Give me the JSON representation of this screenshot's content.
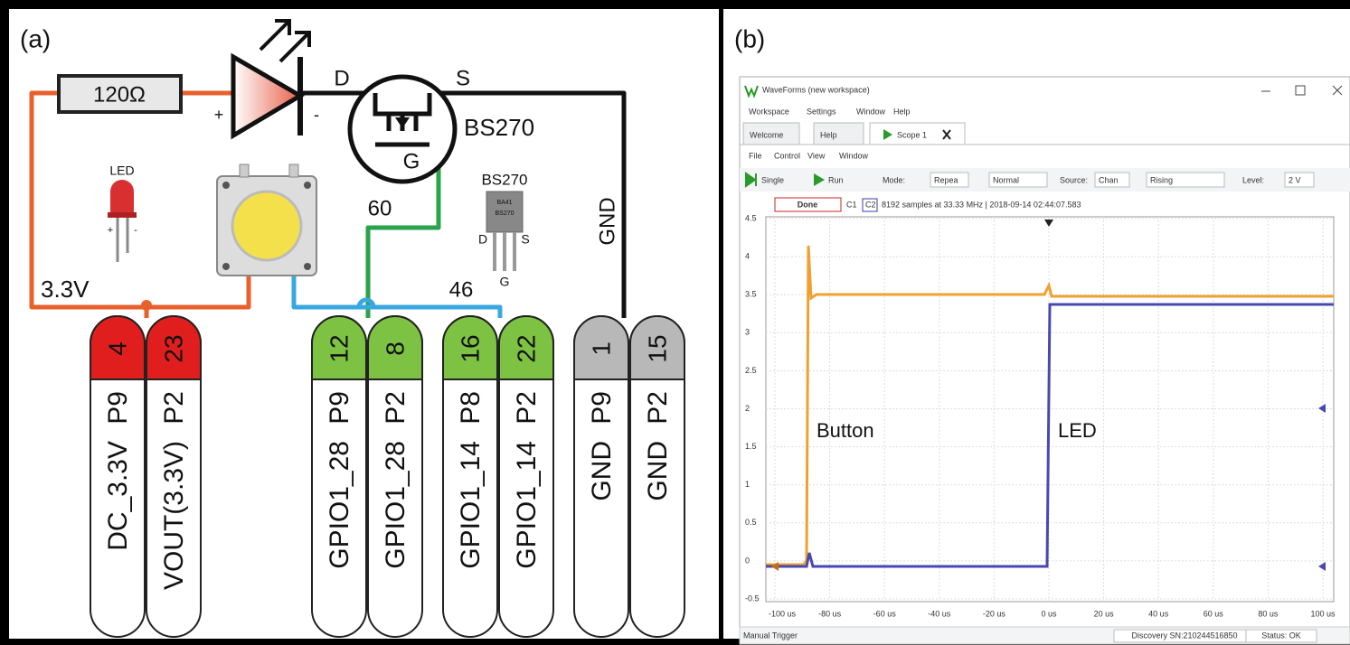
{
  "panel_a": {
    "label": "(a)",
    "resistor": "120Ω",
    "led_polarity": [
      "+",
      "-"
    ],
    "mosfet": {
      "drain": "D",
      "source": "S",
      "gate": "G",
      "name": "BS270"
    },
    "led_icon": {
      "label": "LED",
      "polarity": [
        "+",
        "-"
      ]
    },
    "package": {
      "name": "BS270",
      "marking": [
        "BA41",
        "BS270"
      ],
      "pins": [
        "D",
        "S",
        "G"
      ]
    },
    "wire_labels": {
      "supply": "3.3V",
      "gate_pin": "60",
      "button_pin": "46",
      "ground": "GND"
    },
    "pins": [
      {
        "number": "4",
        "header": "P9",
        "name": "DC_3.3V"
      },
      {
        "number": "23",
        "header": "P2",
        "name": "VOUT(3.3V)"
      },
      {
        "number": "12",
        "header": "P9",
        "name": "GPIO1_28"
      },
      {
        "number": "8",
        "header": "P2",
        "name": "GPIO1_28"
      },
      {
        "number": "16",
        "header": "P8",
        "name": "GPIO1_14"
      },
      {
        "number": "22",
        "header": "P2",
        "name": "GPIO1_14"
      },
      {
        "number": "1",
        "header": "P9",
        "name": "GND"
      },
      {
        "number": "15",
        "header": "P2",
        "name": "GND"
      }
    ]
  },
  "panel_b": {
    "label": "(b)",
    "window_title": "WaveForms (new workspace)",
    "menu": [
      "Workspace",
      "Settings",
      "Window",
      "Help"
    ],
    "tabs": [
      "Welcome",
      "Help",
      "Scope 1"
    ],
    "submenu": [
      "File",
      "Control",
      "View",
      "Window"
    ],
    "toolbar": [
      "Single",
      "Run",
      "Mode:",
      "Repea",
      "Normal",
      "Source:",
      "Chan",
      "Rising",
      "Level:",
      "2 V"
    ],
    "state": "Done",
    "channels": [
      "C1",
      "C2"
    ],
    "info": "8192 samples at 33.33 MHz | 2018-09-14 02:44:07.583",
    "y_ticks": [
      "4.5",
      "4",
      "3.5",
      "3",
      "2.5",
      "2",
      "1.5",
      "1",
      "0.5",
      "0",
      "-0.5"
    ],
    "x_ticks": [
      "-100 us",
      "-80 us",
      "-60 us",
      "-40 us",
      "-20 us",
      "0 us",
      "20 us",
      "40 us",
      "60 us",
      "80 us",
      "100 us"
    ],
    "trace_labels": [
      "Button",
      "LED"
    ],
    "status_bar": [
      "Manual Trigger",
      "Discovery SN:210244516850",
      "Status: OK"
    ]
  }
}
